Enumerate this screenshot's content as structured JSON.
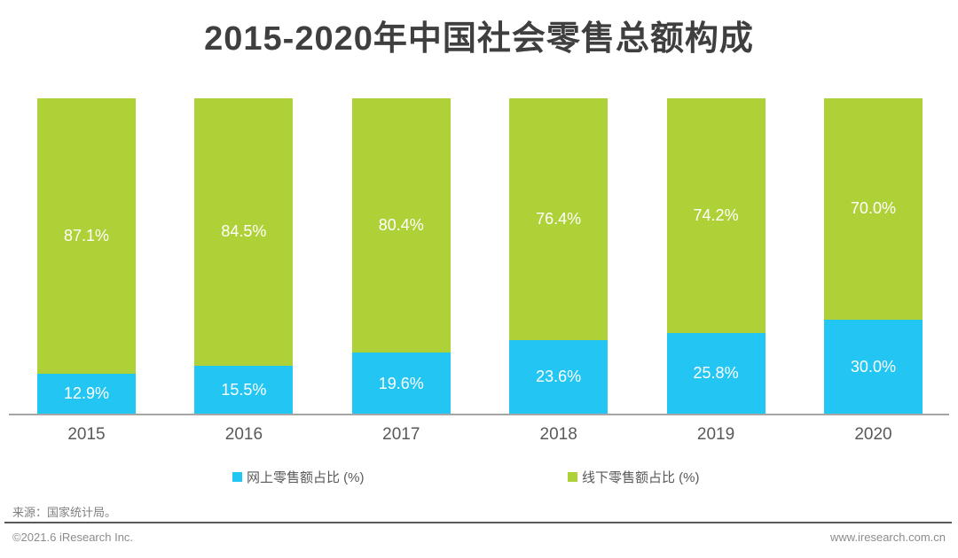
{
  "title": "2015-2020年中国社会零售总额构成",
  "chart_data": {
    "type": "bar",
    "subtype": "stacked-percentage-column",
    "categories": [
      "2015",
      "2016",
      "2017",
      "2018",
      "2019",
      "2020"
    ],
    "series": [
      {
        "name": "网上零售额占比 (%)",
        "color": "#23c5f2",
        "values": [
          12.9,
          15.5,
          19.6,
          23.6,
          25.8,
          30.0
        ]
      },
      {
        "name": "线下零售额占比 (%)",
        "color": "#afd138",
        "values": [
          87.1,
          84.5,
          80.4,
          76.4,
          74.2,
          70.0
        ]
      }
    ],
    "value_labels": {
      "online": [
        "12.9%",
        "15.5%",
        "19.6%",
        "23.6%",
        "25.8%",
        "30.0%"
      ],
      "offline": [
        "87.1%",
        "84.5%",
        "80.4%",
        "76.4%",
        "74.2%",
        "70.0%"
      ]
    },
    "title": "2015-2020年中国社会零售总额构成",
    "xlabel": "",
    "ylabel": "",
    "ylim": [
      0,
      100
    ],
    "grid": false,
    "legend_position": "bottom"
  },
  "legend": {
    "online_label": "网上零售额占比 (%)",
    "offline_label": "线下零售额占比 (%)"
  },
  "footer": {
    "source": "来源：国家统计局。",
    "copyright": "©2021.6 iResearch Inc.",
    "website": "www.iresearch.com.cn"
  },
  "colors": {
    "online_blue": "#23c5f2",
    "offline_green": "#afd138",
    "title_text": "#3f3f3f",
    "axis_text": "#595959",
    "bar_label_text": "#ffffff",
    "axis_line": "#a6a6a6",
    "separator_line": "#595959",
    "footer_text": "#8c8c8c"
  }
}
